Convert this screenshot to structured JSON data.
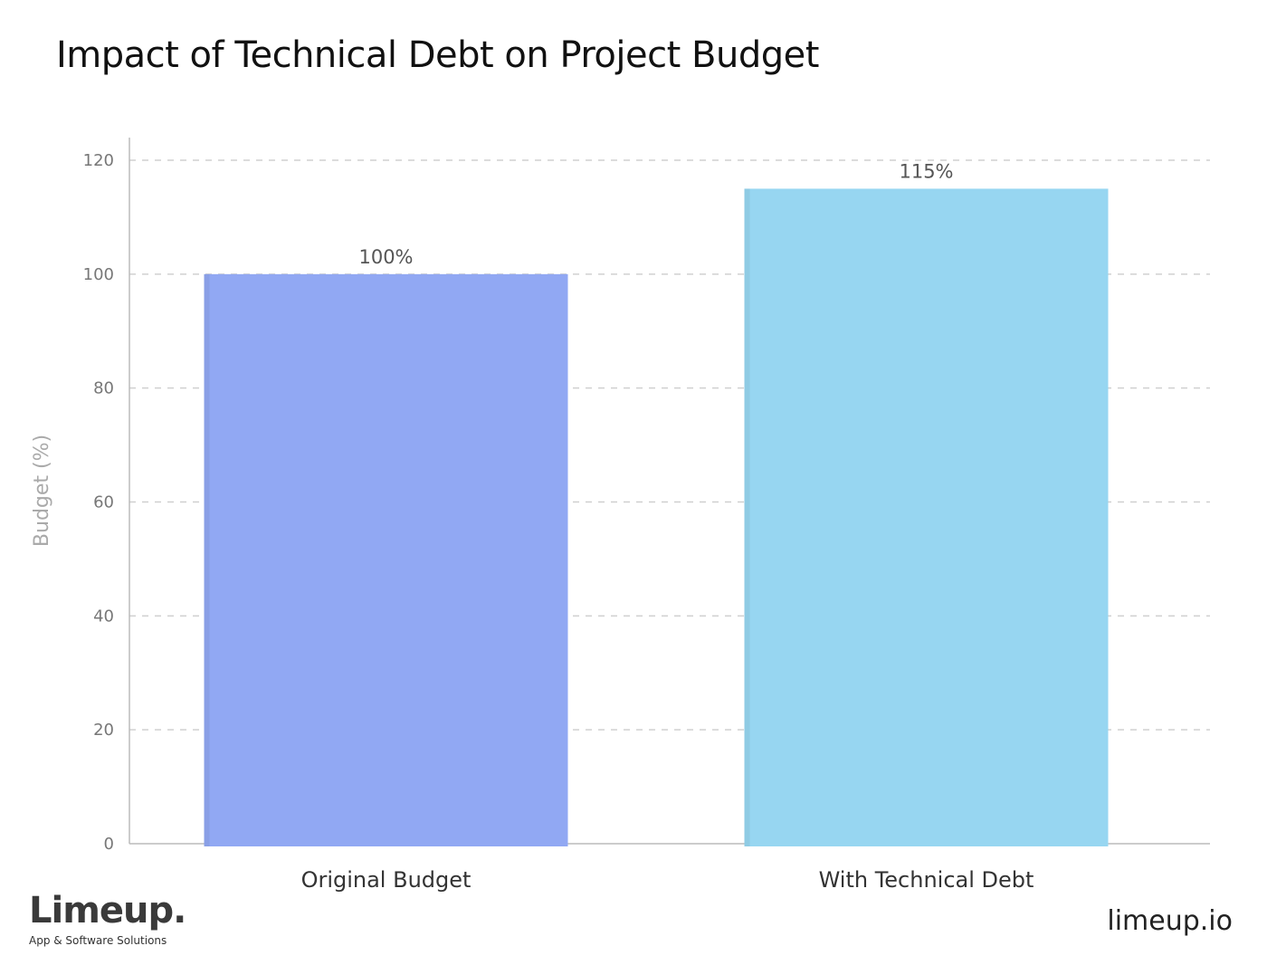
{
  "chart_data": {
    "type": "bar",
    "title": "Impact of Technical Debt on Project Budget",
    "xlabel": "",
    "ylabel": "Budget (%)",
    "categories": [
      "Original Budget",
      "With Technical Debt"
    ],
    "values": [
      100,
      115
    ],
    "data_labels": [
      "100%",
      "115%"
    ],
    "colors": [
      "#91a8f3",
      "#97d6f1"
    ],
    "ylim": [
      0,
      120
    ],
    "yticks": [
      "0",
      "20",
      "40",
      "60",
      "80",
      "100",
      "120"
    ],
    "ytick_values": [
      0,
      20,
      40,
      60,
      80,
      100,
      120
    ],
    "grid": true,
    "grid_style": "dashed"
  },
  "branding": {
    "logo_name": "Limeup.",
    "logo_tagline": "App & Software Solutions",
    "website": "limeup.io"
  }
}
